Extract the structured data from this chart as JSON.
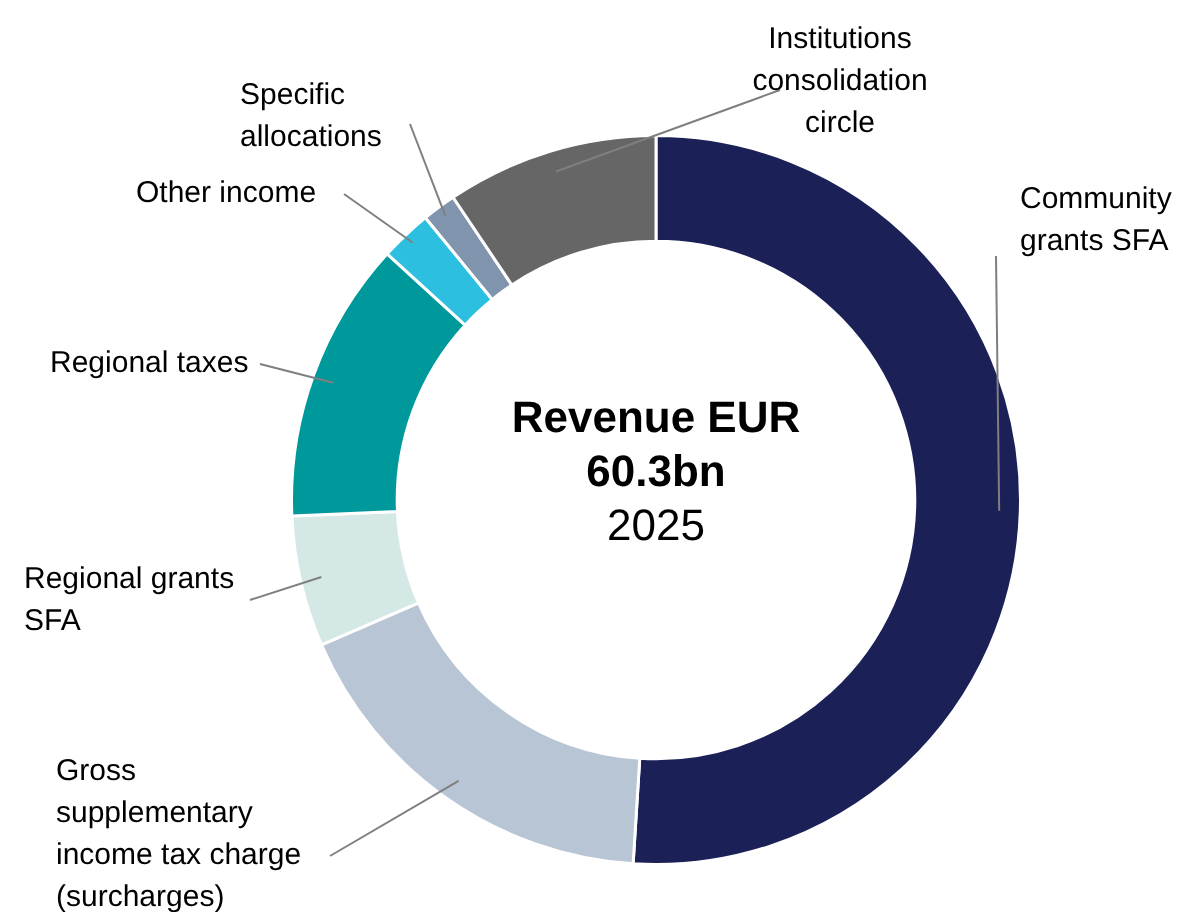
{
  "chart_data": {
    "type": "donut",
    "title": "Revenue EUR 60.3bn",
    "subtitle": "2025",
    "categories": [
      "Community grants SFA",
      "Gross supplementary income tax charge (surcharges)",
      "Regional grants SFA",
      "Regional taxes",
      "Other income",
      "Specific allocations",
      "Institutions consolidation circle"
    ],
    "values": [
      51,
      17.5,
      5.8,
      12.5,
      2.3,
      1.5,
      9.4
    ],
    "colors": [
      "#1b2157",
      "#b8c5d5",
      "#d4e9e5",
      "#00999b",
      "#2dbfe0",
      "#8094ae",
      "#666666"
    ],
    "legend": false
  }
}
